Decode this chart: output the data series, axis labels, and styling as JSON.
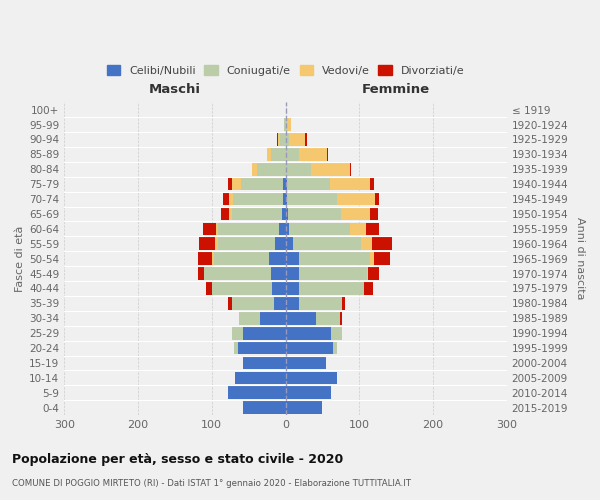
{
  "age_groups": [
    "100+",
    "95-99",
    "90-94",
    "85-89",
    "80-84",
    "75-79",
    "70-74",
    "65-69",
    "60-64",
    "55-59",
    "50-54",
    "45-49",
    "40-44",
    "35-39",
    "30-34",
    "25-29",
    "20-24",
    "15-19",
    "10-14",
    "5-9",
    "0-4"
  ],
  "birth_years": [
    "≤ 1919",
    "1920-1924",
    "1925-1929",
    "1930-1934",
    "1935-1939",
    "1940-1944",
    "1945-1949",
    "1950-1954",
    "1955-1959",
    "1960-1964",
    "1965-1969",
    "1970-1974",
    "1975-1979",
    "1980-1984",
    "1985-1989",
    "1990-1994",
    "1995-1999",
    "2000-2004",
    "2005-2009",
    "2010-2014",
    "2015-2019"
  ],
  "male_celibi": [
    0,
    0,
    0,
    0,
    0,
    3,
    3,
    5,
    9,
    14,
    22,
    20,
    18,
    15,
    35,
    58,
    65,
    58,
    68,
    78,
    57
  ],
  "male_coniugati": [
    0,
    2,
    8,
    20,
    38,
    58,
    68,
    68,
    82,
    78,
    75,
    90,
    82,
    58,
    28,
    14,
    5,
    0,
    0,
    0,
    0
  ],
  "male_vedovi": [
    0,
    0,
    2,
    5,
    8,
    12,
    6,
    3,
    3,
    3,
    2,
    0,
    0,
    0,
    0,
    0,
    0,
    0,
    0,
    0,
    0
  ],
  "male_divorziati": [
    0,
    0,
    2,
    0,
    0,
    5,
    8,
    12,
    18,
    22,
    20,
    8,
    8,
    5,
    0,
    0,
    0,
    0,
    0,
    0,
    0
  ],
  "fem_nubili": [
    0,
    0,
    0,
    0,
    0,
    2,
    2,
    3,
    5,
    10,
    18,
    18,
    18,
    18,
    42,
    62,
    65,
    55,
    70,
    62,
    50
  ],
  "fem_coniugate": [
    0,
    2,
    5,
    18,
    35,
    58,
    68,
    72,
    82,
    92,
    97,
    92,
    88,
    58,
    32,
    14,
    5,
    0,
    0,
    0,
    0
  ],
  "fem_vedove": [
    0,
    5,
    22,
    38,
    52,
    55,
    52,
    40,
    22,
    15,
    5,
    2,
    0,
    0,
    0,
    0,
    0,
    0,
    0,
    0,
    0
  ],
  "fem_divorziate": [
    0,
    0,
    2,
    2,
    2,
    5,
    5,
    10,
    18,
    28,
    22,
    15,
    12,
    5,
    2,
    0,
    0,
    0,
    0,
    0,
    0
  ],
  "colors_celibi": "#4472C4",
  "colors_coniugati": "#BBCCA8",
  "colors_vedovi": "#F5C870",
  "colors_divorziati": "#CC1100",
  "xlim": 300,
  "xticks": [
    -300,
    -200,
    -100,
    0,
    100,
    200,
    300
  ],
  "xticklabels": [
    "300",
    "200",
    "100",
    "0",
    "100",
    "200",
    "300"
  ],
  "title": "Popolazione per età, sesso e stato civile - 2020",
  "subtitle": "COMUNE DI POGGIO MIRTETO (RI) - Dati ISTAT 1° gennaio 2020 - Elaborazione TUTTITALIA.IT",
  "ylabel_left": "Fasce di età",
  "ylabel_right": "Anni di nascita",
  "header_left": "Maschi",
  "header_right": "Femmine",
  "legend_labels": [
    "Celibi/Nubili",
    "Coniugati/e",
    "Vedovi/e",
    "Divorziati/e"
  ],
  "background_color": "#f0f0f0"
}
